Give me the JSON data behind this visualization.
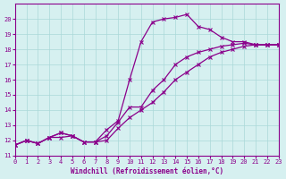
{
  "xlabel": "Windchill (Refroidissement éolien,°C)",
  "background_color": "#d6f0f0",
  "line_color": "#8b008b",
  "grid_color": "#aad8d8",
  "xlim": [
    0,
    23
  ],
  "ylim": [
    11,
    21
  ],
  "xticks": [
    0,
    1,
    2,
    3,
    4,
    5,
    6,
    7,
    8,
    9,
    10,
    11,
    12,
    13,
    14,
    15,
    16,
    17,
    18,
    19,
    20,
    21,
    22,
    23
  ],
  "yticks": [
    11,
    12,
    13,
    14,
    15,
    16,
    17,
    18,
    19,
    20
  ],
  "series1_x": [
    0,
    1,
    2,
    3,
    4,
    5,
    6,
    7,
    8,
    9,
    10,
    11,
    12,
    13,
    14,
    15,
    16,
    17,
    18,
    19,
    20,
    21,
    22,
    23
  ],
  "series1_y": [
    11.7,
    12.0,
    11.8,
    12.2,
    12.2,
    12.3,
    11.9,
    11.9,
    12.7,
    13.3,
    16.0,
    18.5,
    19.8,
    20.0,
    20.1,
    20.3,
    19.5,
    19.3,
    18.8,
    18.5,
    18.5,
    18.3,
    18.3,
    18.3
  ],
  "series2_x": [
    0,
    1,
    2,
    3,
    4,
    5,
    6,
    7,
    8,
    9,
    10,
    11,
    12,
    13,
    14,
    15,
    16,
    17,
    18,
    19,
    20,
    21,
    22,
    23
  ],
  "series2_y": [
    11.7,
    12.0,
    11.8,
    12.2,
    12.5,
    12.3,
    11.9,
    11.9,
    12.3,
    13.2,
    14.2,
    14.2,
    15.3,
    16.0,
    17.0,
    17.5,
    17.8,
    18.0,
    18.2,
    18.3,
    18.4,
    18.3,
    18.3,
    18.3
  ],
  "series3_x": [
    0,
    1,
    2,
    3,
    4,
    5,
    6,
    7,
    8,
    9,
    10,
    11,
    12,
    13,
    14,
    15,
    16,
    17,
    18,
    19,
    20,
    21,
    22,
    23
  ],
  "series3_y": [
    11.7,
    12.0,
    11.8,
    12.2,
    12.5,
    12.3,
    11.9,
    11.9,
    12.0,
    12.8,
    13.5,
    14.0,
    14.5,
    15.2,
    16.0,
    16.5,
    17.0,
    17.5,
    17.8,
    18.0,
    18.2,
    18.3,
    18.3,
    18.3
  ]
}
